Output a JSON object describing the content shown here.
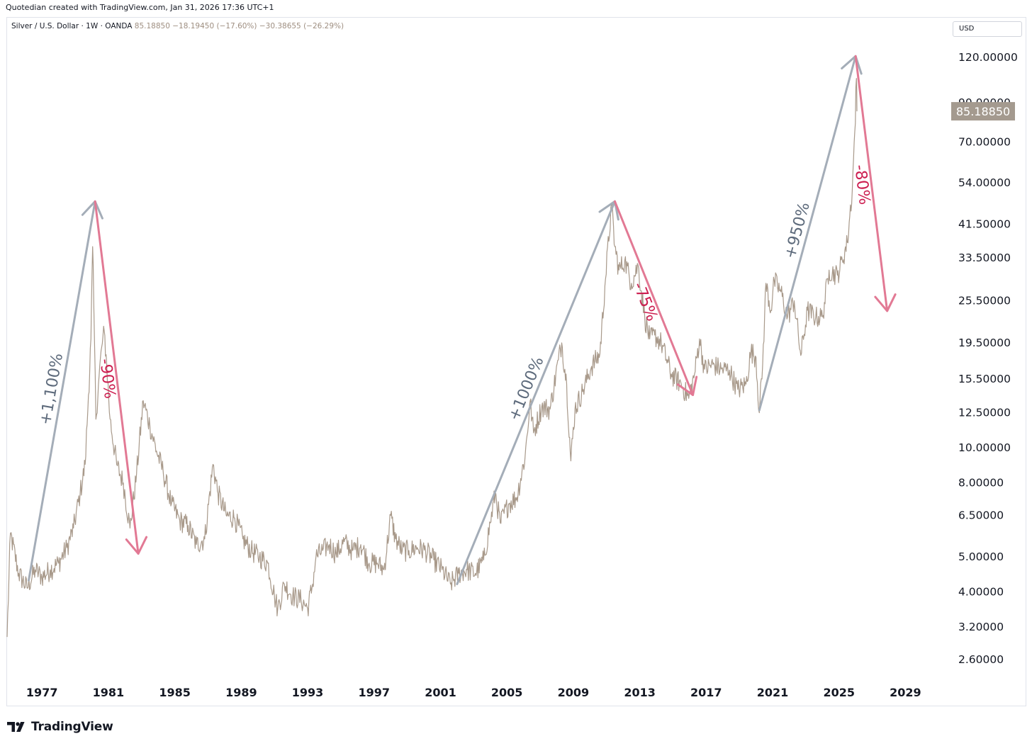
{
  "header": {
    "credit": "Quotedian created with TradingView.com, Jan 31, 2026 17:36 UTC+1",
    "symbol": "Silver / U.S. Dollar · 1W · OANDA",
    "values": "85.18850  −18.19450 (−17.60%)  −30.38655 (−26.29%)"
  },
  "currency_button": "USD",
  "brand": "TradingView",
  "colors": {
    "price": "#a8998a",
    "up_arrow": "#a4adb8",
    "down_arrow": "#e27994",
    "up_text": "#5e6b7c",
    "down_text": "#cc1d4f",
    "price_label_bg": "#a49a8f"
  },
  "chart_data": {
    "type": "line",
    "title": "Silver / U.S. Dollar · 1W · OANDA",
    "yscale": "log",
    "xlim": [
      1974.9,
      2031.5
    ],
    "ylim": [
      2.3,
      135
    ],
    "x_ticks": [
      "1977",
      "1981",
      "1985",
      "1989",
      "1993",
      "1997",
      "2001",
      "2005",
      "2009",
      "2013",
      "2017",
      "2021",
      "2025",
      "2029"
    ],
    "y_ticks": [
      "120.00000",
      "90.00000",
      "70.00000",
      "54.00000",
      "41.50000",
      "33.50000",
      "25.50000",
      "19.50000",
      "15.50000",
      "12.50000",
      "10.00000",
      "8.00000",
      "6.50000",
      "5.00000",
      "4.00000",
      "3.20000",
      "2.60000"
    ],
    "last_price": {
      "value": 85.1885,
      "label": "85.18850"
    },
    "series": [
      {
        "name": "Silver (XAG/USD)",
        "points": [
          [
            1974.9,
            3.0
          ],
          [
            1975.1,
            5.8
          ],
          [
            1975.6,
            4.5
          ],
          [
            1976.1,
            4.1
          ],
          [
            1976.6,
            4.6
          ],
          [
            1977.0,
            4.4
          ],
          [
            1977.5,
            4.6
          ],
          [
            1978.0,
            4.8
          ],
          [
            1978.5,
            5.3
          ],
          [
            1978.9,
            6.0
          ],
          [
            1979.3,
            7.5
          ],
          [
            1979.6,
            9.0
          ],
          [
            1979.8,
            14.0
          ],
          [
            1979.95,
            20.0
          ],
          [
            1980.05,
            36.0
          ],
          [
            1980.12,
            25.0
          ],
          [
            1980.25,
            12.0
          ],
          [
            1980.4,
            15.0
          ],
          [
            1980.6,
            19.0
          ],
          [
            1980.75,
            21.0
          ],
          [
            1980.9,
            17.0
          ],
          [
            1981.1,
            12.0
          ],
          [
            1981.5,
            9.0
          ],
          [
            1981.9,
            8.0
          ],
          [
            1982.3,
            6.0
          ],
          [
            1982.7,
            8.5
          ],
          [
            1983.1,
            13.5
          ],
          [
            1983.5,
            11.5
          ],
          [
            1983.9,
            9.8
          ],
          [
            1984.3,
            8.6
          ],
          [
            1984.8,
            7.0
          ],
          [
            1985.3,
            6.3
          ],
          [
            1985.8,
            6.1
          ],
          [
            1986.3,
            5.4
          ],
          [
            1986.8,
            5.6
          ],
          [
            1987.3,
            9.0
          ],
          [
            1987.6,
            7.5
          ],
          [
            1988.1,
            6.5
          ],
          [
            1988.6,
            6.4
          ],
          [
            1989.1,
            5.6
          ],
          [
            1989.6,
            5.2
          ],
          [
            1990.1,
            5.0
          ],
          [
            1990.6,
            4.8
          ],
          [
            1991.0,
            3.9
          ],
          [
            1991.2,
            3.6
          ],
          [
            1991.6,
            4.2
          ],
          [
            1992.1,
            3.9
          ],
          [
            1992.6,
            3.8
          ],
          [
            1993.0,
            3.6
          ],
          [
            1993.3,
            4.2
          ],
          [
            1993.5,
            5.0
          ],
          [
            1993.9,
            5.2
          ],
          [
            1994.3,
            5.4
          ],
          [
            1994.7,
            5.1
          ],
          [
            1995.2,
            5.5
          ],
          [
            1995.7,
            5.2
          ],
          [
            1996.2,
            5.4
          ],
          [
            1996.7,
            4.8
          ],
          [
            1997.2,
            4.8
          ],
          [
            1997.6,
            4.6
          ],
          [
            1998.0,
            6.5
          ],
          [
            1998.3,
            5.6
          ],
          [
            1998.7,
            5.2
          ],
          [
            1999.1,
            5.2
          ],
          [
            1999.6,
            5.3
          ],
          [
            2000.1,
            5.2
          ],
          [
            2000.6,
            4.9
          ],
          [
            2001.1,
            4.6
          ],
          [
            2001.6,
            4.2
          ],
          [
            2002.1,
            4.5
          ],
          [
            2002.6,
            4.6
          ],
          [
            2003.1,
            4.5
          ],
          [
            2003.6,
            4.9
          ],
          [
            2004.0,
            6.2
          ],
          [
            2004.3,
            7.5
          ],
          [
            2004.6,
            6.2
          ],
          [
            2005.1,
            7.0
          ],
          [
            2005.6,
            7.3
          ],
          [
            2006.1,
            9.5
          ],
          [
            2006.4,
            13.5
          ],
          [
            2006.6,
            11.0
          ],
          [
            2007.1,
            13.0
          ],
          [
            2007.6,
            12.8
          ],
          [
            2008.1,
            17.5
          ],
          [
            2008.3,
            19.5
          ],
          [
            2008.6,
            15.0
          ],
          [
            2008.85,
            9.2
          ],
          [
            2009.1,
            12.8
          ],
          [
            2009.6,
            14.5
          ],
          [
            2010.1,
            16.8
          ],
          [
            2010.6,
            18.2
          ],
          [
            2010.9,
            28.0
          ],
          [
            2011.3,
            47.0
          ],
          [
            2011.5,
            36.0
          ],
          [
            2011.75,
            31.0
          ],
          [
            2012.1,
            33.0
          ],
          [
            2012.5,
            28.5
          ],
          [
            2012.9,
            32.0
          ],
          [
            2013.3,
            23.0
          ],
          [
            2013.6,
            20.0
          ],
          [
            2013.9,
            20.5
          ],
          [
            2014.3,
            19.5
          ],
          [
            2014.9,
            16.0
          ],
          [
            2015.5,
            15.0
          ],
          [
            2015.95,
            13.7
          ],
          [
            2016.3,
            16.0
          ],
          [
            2016.6,
            20.0
          ],
          [
            2016.9,
            16.5
          ],
          [
            2017.4,
            17.0
          ],
          [
            2017.9,
            16.5
          ],
          [
            2018.4,
            16.4
          ],
          [
            2018.9,
            14.5
          ],
          [
            2019.4,
            15.0
          ],
          [
            2019.7,
            18.5
          ],
          [
            2020.0,
            17.8
          ],
          [
            2020.2,
            12.5
          ],
          [
            2020.4,
            17.0
          ],
          [
            2020.6,
            28.5
          ],
          [
            2020.9,
            24.0
          ],
          [
            2021.1,
            29.0
          ],
          [
            2021.5,
            27.0
          ],
          [
            2021.9,
            23.0
          ],
          [
            2022.3,
            25.5
          ],
          [
            2022.7,
            18.0
          ],
          [
            2023.1,
            24.0
          ],
          [
            2023.6,
            23.0
          ],
          [
            2024.0,
            23.0
          ],
          [
            2024.4,
            31.0
          ],
          [
            2024.9,
            30.0
          ],
          [
            2025.2,
            33.0
          ],
          [
            2025.5,
            37.0
          ],
          [
            2025.8,
            52.0
          ],
          [
            2025.95,
            75.0
          ],
          [
            2026.05,
            105.0
          ],
          [
            2026.08,
            85.19
          ]
        ]
      }
    ],
    "annotations": [
      {
        "text": "+1,100%",
        "direction": "up",
        "from": [
          1976.2,
          4.3
        ],
        "to": [
          1980.2,
          48.0
        ]
      },
      {
        "text": "-90%",
        "direction": "down",
        "from": [
          1980.2,
          48.0
        ],
        "to": [
          1982.8,
          5.1
        ]
      },
      {
        "text": "+1000%",
        "direction": "up",
        "from": [
          2002.0,
          4.2
        ],
        "to": [
          2011.5,
          48.0
        ]
      },
      {
        "text": "-75%",
        "direction": "down",
        "from": [
          2011.5,
          48.0
        ],
        "to": [
          2016.2,
          14.0
        ]
      },
      {
        "text": "+950%",
        "direction": "up",
        "from": [
          2020.2,
          12.7
        ],
        "to": [
          2026.0,
          121.0
        ]
      },
      {
        "text": "-80%",
        "direction": "down",
        "from": [
          2026.0,
          121.0
        ],
        "to": [
          2027.9,
          23.9
        ]
      }
    ]
  }
}
